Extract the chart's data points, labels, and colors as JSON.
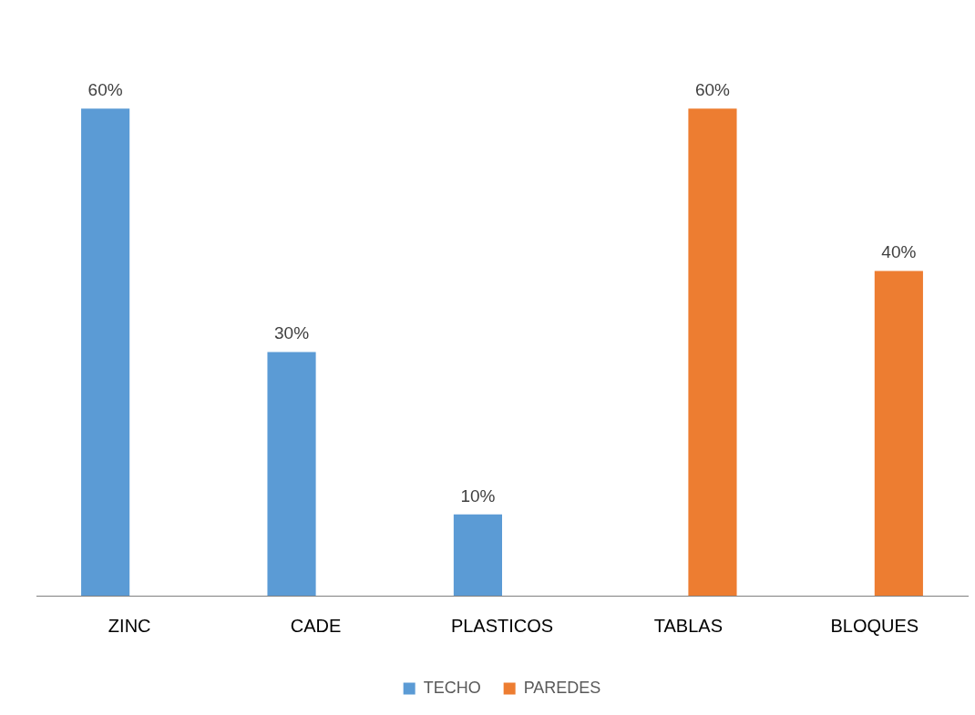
{
  "chart_data": {
    "type": "bar",
    "categories": [
      "ZINC",
      "CADE",
      "PLASTICOS",
      "TABLAS",
      "BLOQUES"
    ],
    "series": [
      {
        "name": "TECHO",
        "color": "#5b9bd5",
        "values": [
          60,
          30,
          10,
          null,
          null
        ],
        "value_labels": [
          "60%",
          "30%",
          "10%",
          null,
          null
        ]
      },
      {
        "name": "PAREDES",
        "color": "#ed7d31",
        "values": [
          null,
          null,
          null,
          60,
          40
        ],
        "value_labels": [
          null,
          null,
          null,
          "60%",
          "40%"
        ]
      }
    ],
    "legend": "bottom",
    "grid": false
  }
}
